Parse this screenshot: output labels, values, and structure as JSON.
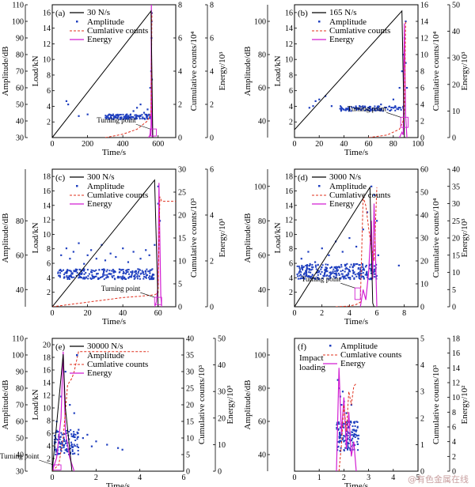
{
  "watermark": "@有色金属在线",
  "colors": {
    "load": "#000000",
    "amplitude": "#1f3fbf",
    "cumulative": "#e0301e",
    "energy": "#d21fd2",
    "box": "#d21fd2"
  },
  "chart_data": [
    {
      "id": "a",
      "type": "line",
      "label": "(a)",
      "rate_text": "30 N/s",
      "legend": [
        "Amplitude",
        "Cumlative counts",
        "Energy"
      ],
      "annotation": "Turning point",
      "xlabel": "Time/s",
      "ylabel_amp": "Amplitude/dB",
      "ylabel_load": "Load/kN",
      "ylabel_cum": "Cumulative counts/10⁴",
      "ylabel_energy": "Energy/10³",
      "xlim": [
        0,
        700
      ],
      "amp_lim": [
        30,
        110
      ],
      "load_lim": [
        0,
        17
      ],
      "cum_lim": [
        0,
        8
      ],
      "energy_lim": [
        0,
        8
      ],
      "xticks": [
        0,
        200,
        400,
        600
      ],
      "amp_ticks": [
        30,
        40,
        50,
        60,
        70,
        80,
        90,
        100,
        110
      ],
      "load_ticks": [
        2,
        4,
        6,
        8,
        10,
        12,
        14,
        16
      ],
      "cum_ticks": [
        0,
        2,
        4,
        6,
        8
      ],
      "energy_ticks": [
        0,
        2,
        4,
        6,
        8
      ],
      "load": {
        "x": [
          0,
          560,
          570
        ],
        "y": [
          0,
          16.2,
          0
        ]
      },
      "cumulative": {
        "x": [
          300,
          400,
          480,
          540,
          560,
          565
        ],
        "y": [
          0,
          0.2,
          0.5,
          1.0,
          1.5,
          7.5
        ]
      },
      "energy": {
        "x": [
          545,
          552,
          556,
          558,
          560,
          562,
          563,
          565,
          568
        ],
        "y": [
          0,
          0.1,
          0.3,
          0.1,
          0.8,
          8,
          3,
          1,
          0
        ]
      },
      "amplitude_band": {
        "x0": 300,
        "x1": 565,
        "y0": 41,
        "y1": 44,
        "n": 130
      },
      "amplitude_pts": {
        "x": [
          80,
          90,
          150,
          200,
          460,
          480,
          500,
          520,
          540,
          555,
          560,
          562,
          563,
          564,
          565
        ],
        "y": [
          52,
          50,
          43,
          44,
          46,
          48,
          50,
          45,
          47,
          60,
          70,
          90,
          100,
          105,
          65
        ]
      },
      "box": {
        "x0": 555,
        "x1": 590,
        "y0": 0.2,
        "y1": 1.1
      }
    },
    {
      "id": "b",
      "type": "line",
      "label": "(b)",
      "rate_text": "165 N/s",
      "legend": [
        "Amplitude",
        "Cumlative counts",
        "Energy"
      ],
      "annotation": "Turning point",
      "xlabel": "Time/s",
      "ylabel_amp": "Amplitude/dB",
      "ylabel_load": "Load/kN",
      "ylabel_cum": "Cumulative counts/10⁴",
      "ylabel_energy": "Energy/10³",
      "xlim": [
        0,
        100
      ],
      "amp_lim": [
        30,
        110
      ],
      "load_lim": [
        0,
        17
      ],
      "cum_lim": [
        0,
        16
      ],
      "energy_lim": [
        0,
        50
      ],
      "xticks": [
        0,
        20,
        40,
        60,
        80,
        100
      ],
      "amp_ticks": [
        40,
        60,
        80,
        100
      ],
      "load_ticks": [
        2,
        4,
        6,
        8,
        10,
        12,
        14,
        16
      ],
      "cum_ticks": [
        0,
        2,
        4,
        6,
        8,
        10,
        12,
        14,
        16
      ],
      "energy_ticks": [
        0,
        10,
        20,
        30,
        40,
        50
      ],
      "load": {
        "x": [
          0,
          87,
          89
        ],
        "y": [
          1,
          16.2,
          0
        ]
      },
      "cumulative": {
        "x": [
          60,
          75,
          85,
          88,
          89,
          90
        ],
        "y": [
          0,
          0.3,
          1,
          2,
          3,
          14
        ]
      },
      "energy": {
        "x": [
          85,
          87,
          88,
          89,
          90,
          91
        ],
        "y": [
          0,
          2,
          1,
          43,
          8,
          0
        ]
      },
      "amplitude_band": {
        "x0": 37,
        "x1": 90,
        "y0": 46,
        "y1": 49,
        "n": 110
      },
      "amplitude_pts": {
        "x": [
          12,
          15,
          17,
          20,
          25,
          30,
          50,
          70,
          80,
          85,
          87,
          88,
          89,
          90,
          90,
          91
        ],
        "y": [
          48,
          49,
          52,
          53,
          55,
          49,
          48,
          50,
          53,
          60,
          70,
          80,
          90,
          100,
          75,
          60
        ]
      },
      "box": {
        "x0": 86,
        "x1": 92,
        "y0": 1.3,
        "y1": 2.6
      }
    },
    {
      "id": "c",
      "type": "line",
      "label": "(c)",
      "rate_text": "300 N/s",
      "legend": [
        "Amplitude",
        "Cumlative counts",
        "Energy"
      ],
      "annotation": "Turning point",
      "xlabel": "Time/s",
      "ylabel_amp": "Amplitude/dB",
      "ylabel_load": "Load/kN",
      "ylabel_cum": "Cumulative counts/10³",
      "ylabel_energy": "Energy/10³",
      "xlim": [
        0,
        70
      ],
      "amp_lim": [
        30,
        110
      ],
      "load_lim": [
        0,
        19
      ],
      "cum_lim": [
        0,
        30
      ],
      "energy_lim": [
        0,
        6
      ],
      "xticks": [
        0,
        20,
        40,
        60
      ],
      "amp_ticks": [
        40,
        60,
        80
      ],
      "load_ticks": [
        2,
        4,
        6,
        8,
        10,
        12,
        14,
        16,
        18
      ],
      "cum_ticks": [
        0,
        5,
        10,
        15,
        20,
        25,
        30
      ],
      "energy_ticks": [
        0,
        2,
        4,
        6
      ],
      "load": {
        "x": [
          0,
          58,
          60
        ],
        "y": [
          0,
          17.5,
          0
        ]
      },
      "cumulative": {
        "x": [
          0,
          10,
          20,
          30,
          40,
          50,
          58,
          60,
          61,
          62,
          70
        ],
        "y": [
          0,
          0.5,
          1,
          1.5,
          2,
          2.3,
          2.6,
          3,
          24,
          23,
          23
        ]
      },
      "energy": {
        "x": [
          58,
          59,
          60,
          60.5,
          61,
          61.5,
          62
        ],
        "y": [
          0,
          0.2,
          1,
          5.4,
          3,
          0.5,
          0
        ]
      },
      "amplitude_band": {
        "x0": 3,
        "x1": 58,
        "y0": 46,
        "y1": 52,
        "n": 260
      },
      "amplitude_pts": {
        "x": [
          5,
          8,
          10,
          12,
          15,
          18,
          20,
          22,
          25,
          28,
          30,
          33,
          36,
          40,
          43,
          46,
          50,
          53,
          55,
          58,
          60,
          60,
          61
        ],
        "y": [
          60,
          64,
          58,
          62,
          67,
          55,
          60,
          63,
          58,
          66,
          57,
          61,
          59,
          64,
          56,
          62,
          58,
          63,
          60,
          66,
          100,
          90,
          80
        ]
      },
      "box": {
        "x0": 58,
        "x1": 62,
        "y0": 0.3,
        "y1": 1.3
      }
    },
    {
      "id": "d",
      "type": "line",
      "label": "(d)",
      "rate_text": "3000 N/s",
      "legend": [
        "Amplitude",
        "Cumlative counts",
        "Energy"
      ],
      "annotation": "Turning point",
      "xlabel": "Time/s",
      "ylabel_amp": "Amplitude/dB",
      "ylabel_load": "Load/kN",
      "ylabel_cum": "Cumulative counts/10⁴",
      "ylabel_energy": "Energy/10³",
      "xlim": [
        0,
        9
      ],
      "amp_lim": [
        30,
        110
      ],
      "load_lim": [
        0,
        19
      ],
      "cum_lim": [
        0,
        60
      ],
      "energy_lim": [
        0,
        40
      ],
      "xticks": [
        0,
        2,
        4,
        6,
        8
      ],
      "amp_ticks": [
        40,
        60,
        80,
        100
      ],
      "load_ticks": [
        2,
        4,
        6,
        8,
        10,
        12,
        14,
        16,
        18
      ],
      "cum_ticks": [
        0,
        10,
        20,
        30,
        40,
        50,
        60
      ],
      "energy_ticks": [
        0,
        5,
        10,
        15,
        20,
        25,
        30,
        35,
        40
      ],
      "load": {
        "x": [
          0,
          5.5,
          5.7,
          5.8
        ],
        "y": [
          0,
          16.5,
          0.5,
          0
        ]
      },
      "cumulative": {
        "x": [
          3,
          4,
          4.5,
          4.8,
          5,
          5.2,
          5.5,
          5.8,
          6
        ],
        "y": [
          0,
          0.3,
          1,
          2,
          48,
          44,
          30,
          20,
          52
        ]
      },
      "energy": {
        "x": [
          4.8,
          5,
          5.2,
          5.4,
          5.6,
          5.7,
          5.8,
          5.9,
          6
        ],
        "y": [
          0,
          5,
          2,
          10,
          25,
          8,
          30,
          15,
          0
        ]
      },
      "amplitude_band": {
        "x0": 0.2,
        "x1": 6,
        "y0": 46,
        "y1": 55,
        "n": 300
      },
      "amplitude_pts": {
        "x": [
          0.5,
          1,
          1.5,
          2,
          2.5,
          3,
          3.5,
          4,
          4.5,
          5,
          5.3,
          5.6,
          5.8,
          6,
          6.1,
          7.6
        ],
        "y": [
          58,
          62,
          56,
          64,
          60,
          68,
          62,
          70,
          65,
          75,
          85,
          100,
          95,
          80,
          60,
          54
        ]
      },
      "box": {
        "x0": 4.4,
        "x1": 4.8,
        "y0": 1.0,
        "y1": 2.6
      }
    },
    {
      "id": "e",
      "type": "line",
      "label": "(e)",
      "rate_text": "30000 N/s",
      "legend": [
        "Amplitude",
        "Cumlative counts",
        "Energy"
      ],
      "annotation": "Turning point",
      "xlabel": "Time/s",
      "ylabel_amp": "Amplitude/dB",
      "ylabel_load": "Load/kN",
      "ylabel_cum": "Cumulative counts/10³",
      "ylabel_energy": "Energy/10³",
      "xlim": [
        0,
        6
      ],
      "amp_lim": [
        30,
        110
      ],
      "load_lim": [
        0,
        21
      ],
      "cum_lim": [
        0,
        40
      ],
      "energy_lim": [
        0,
        50
      ],
      "xticks": [
        0,
        2,
        4,
        6
      ],
      "amp_ticks": [
        30,
        40,
        50,
        60,
        70,
        80,
        90,
        100,
        110
      ],
      "load_ticks": [
        2,
        4,
        6,
        8,
        10,
        12,
        14,
        16,
        18,
        20
      ],
      "cum_ticks": [
        0,
        5,
        10,
        15,
        20,
        25,
        30,
        35,
        40
      ],
      "energy_ticks": [
        0,
        10,
        20,
        30,
        40,
        50
      ],
      "load": {
        "x": [
          0,
          0.5,
          0.6,
          0.9
        ],
        "y": [
          0,
          18.5,
          10,
          0
        ]
      },
      "cumulative": {
        "x": [
          0,
          0.3,
          0.5,
          0.7,
          0.9,
          1.0,
          1.2,
          4.4
        ],
        "y": [
          0,
          2,
          10,
          26,
          28,
          30,
          36,
          36
        ]
      },
      "energy": {
        "x": [
          0,
          0.2,
          0.4,
          0.5,
          0.6,
          0.8,
          1.0
        ],
        "y": [
          0,
          5,
          20,
          45,
          15,
          5,
          0
        ]
      },
      "amplitude_band": {
        "x0": 0.1,
        "x1": 1.2,
        "y0": 40,
        "y1": 55,
        "n": 120
      },
      "amplitude_pts": {
        "x": [
          0.2,
          0.4,
          0.6,
          0.8,
          1.0,
          1.2,
          1.4,
          1.6,
          1.8,
          2.0,
          2.5,
          3.0,
          3.2
        ],
        "y": [
          60,
          75,
          90,
          70,
          65,
          55,
          50,
          52,
          45,
          48,
          46,
          44,
          43
        ]
      },
      "box": {
        "x0": 0.05,
        "x1": 0.4,
        "y0": 0.2,
        "y1": 1.0
      }
    },
    {
      "id": "f",
      "type": "line",
      "label": "(f)",
      "rate_text": "Impact\nloading",
      "legend": [
        "Amplitude",
        "Cumlative counts",
        "Energy"
      ],
      "annotation": "",
      "xlabel": "Time/s",
      "ylabel_amp": "Amplitude/dB",
      "ylabel_load": "",
      "ylabel_cum": "Cumulative counts/10³",
      "ylabel_energy": "Energy/10²",
      "xlim": [
        0,
        5
      ],
      "amp_lim": [
        30,
        110
      ],
      "load_lim": [
        0,
        1
      ],
      "cum_lim": [
        0,
        5
      ],
      "energy_lim": [
        0,
        18
      ],
      "xticks": [
        0,
        1,
        2,
        3,
        4,
        5
      ],
      "amp_ticks": [
        40,
        60,
        80,
        100
      ],
      "load_ticks": [],
      "cum_ticks": [
        0,
        1,
        2,
        3,
        4,
        5
      ],
      "energy_ticks": [
        0,
        2,
        4,
        6,
        8,
        10,
        12,
        14,
        16,
        18
      ],
      "load": {
        "x": [],
        "y": []
      },
      "cumulative": {
        "x": [
          1.8,
          1.9,
          2.0,
          2.1,
          2.2,
          2.3,
          2.4,
          2.5
        ],
        "y": [
          0,
          1,
          2.5,
          1.5,
          3,
          2.5,
          3.2,
          3.3
        ]
      },
      "energy": {
        "x": [
          1.7,
          1.8,
          1.9,
          2.0,
          2.1,
          2.2,
          2.3,
          2.4,
          2.5
        ],
        "y": [
          0,
          14,
          5,
          10,
          3,
          8,
          2,
          4,
          0
        ]
      },
      "amplitude_band": {
        "x0": 1.7,
        "x1": 2.6,
        "y0": 42,
        "y1": 60,
        "n": 140
      },
      "amplitude_pts": {
        "x": [
          1.75,
          1.8,
          1.85,
          1.9,
          1.95,
          2.0,
          2.1,
          2.2,
          2.3,
          2.4
        ],
        "y": [
          85,
          80,
          75,
          70,
          78,
          72,
          65,
          60,
          70,
          55
        ]
      },
      "box": null
    }
  ]
}
